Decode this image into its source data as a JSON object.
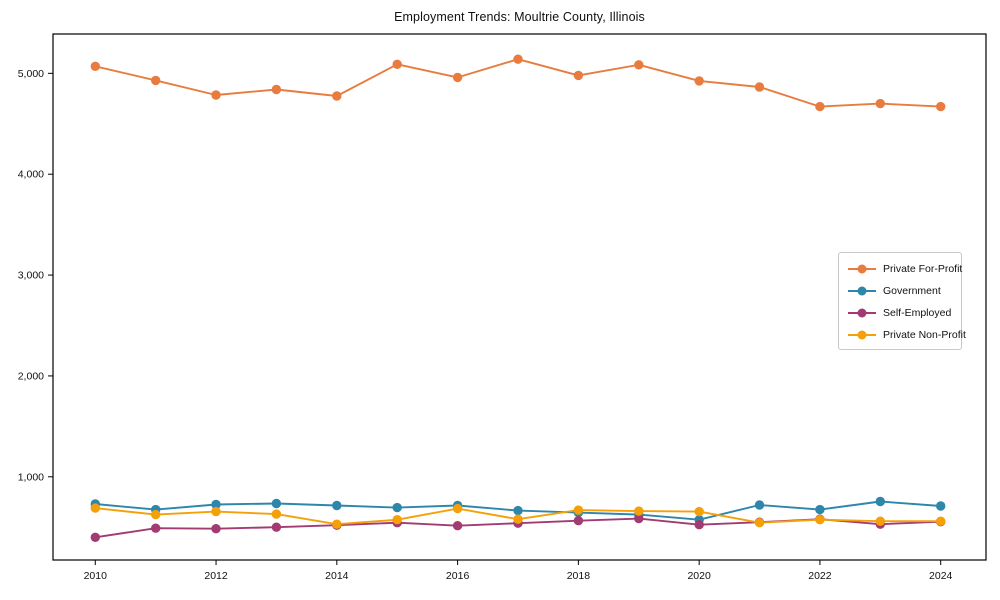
{
  "chart_data": {
    "type": "line",
    "title": "Employment Trends: Moultrie County, Illinois",
    "x": [
      2010,
      2011,
      2012,
      2013,
      2014,
      2015,
      2016,
      2017,
      2018,
      2019,
      2020,
      2021,
      2022,
      2023,
      2024
    ],
    "series": [
      {
        "name": "Private For-Profit",
        "color": "#E87C3F",
        "values": [
          5070,
          4930,
          4785,
          4840,
          4775,
          5090,
          4960,
          5140,
          4980,
          5085,
          4925,
          4865,
          4670,
          4700,
          4670
        ]
      },
      {
        "name": "Government",
        "color": "#2E86AB",
        "values": [
          730,
          675,
          725,
          735,
          715,
          695,
          715,
          665,
          645,
          625,
          575,
          720,
          675,
          755,
          710
        ]
      },
      {
        "name": "Self-Employed",
        "color": "#A23B72",
        "values": [
          400,
          490,
          485,
          500,
          520,
          545,
          515,
          540,
          565,
          585,
          525,
          550,
          580,
          530,
          555
        ]
      },
      {
        "name": "Private Non-Profit",
        "color": "#F5A009",
        "values": [
          690,
          625,
          655,
          630,
          530,
          575,
          685,
          580,
          670,
          660,
          655,
          545,
          575,
          560,
          560
        ]
      }
    ],
    "xticks": [
      2010,
      2012,
      2014,
      2016,
      2018,
      2020,
      2022,
      2024
    ],
    "yticks": [
      1000,
      2000,
      3000,
      4000,
      5000
    ],
    "ytick_labels": [
      "1,000",
      "2,000",
      "3,000",
      "4,000",
      "5,000"
    ],
    "xlim": [
      2009.3,
      2024.75
    ],
    "ylim": [
      175,
      5390
    ],
    "grid": false,
    "legend_position": "center-right",
    "marker": "circle",
    "background_color": "#ffffff",
    "axis_color": "#000000"
  }
}
